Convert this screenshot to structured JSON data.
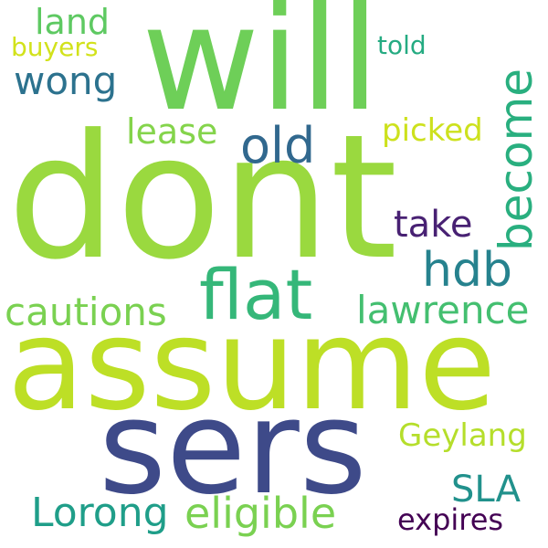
{
  "words": [
    {
      "key": "will",
      "text": "will",
      "color": "#6ecf58"
    },
    {
      "key": "dont",
      "text": "dont",
      "color": "#9ad93f"
    },
    {
      "key": "assume",
      "text": "assume",
      "color": "#bddf26"
    },
    {
      "key": "sers",
      "text": "sers",
      "color": "#3e4a89"
    },
    {
      "key": "flat",
      "text": "flat",
      "color": "#35b779"
    },
    {
      "key": "old",
      "text": "old",
      "color": "#31688e"
    },
    {
      "key": "hdb",
      "text": "hdb",
      "color": "#26828e"
    },
    {
      "key": "become",
      "text": "become",
      "color": "#29af7f"
    },
    {
      "key": "take",
      "text": "take",
      "color": "#482173"
    },
    {
      "key": "land",
      "text": "land",
      "color": "#5ec962"
    },
    {
      "key": "wong",
      "text": "wong",
      "color": "#2c728e"
    },
    {
      "key": "buyers",
      "text": "buyers",
      "color": "#d2e21b"
    },
    {
      "key": "told",
      "text": "told",
      "color": "#25ab82"
    },
    {
      "key": "lease",
      "text": "lease",
      "color": "#84d44b"
    },
    {
      "key": "picked",
      "text": "picked",
      "color": "#cde11d"
    },
    {
      "key": "cautions",
      "text": "cautions",
      "color": "#7ad151"
    },
    {
      "key": "lawrence",
      "text": "lawrence",
      "color": "#44bf70"
    },
    {
      "key": "Geylang",
      "text": "Geylang",
      "color": "#b5de2b"
    },
    {
      "key": "SLA",
      "text": "SLA",
      "color": "#21918c"
    },
    {
      "key": "Lorong",
      "text": "Lorong",
      "color": "#1f9e89"
    },
    {
      "key": "eligible",
      "text": "eligible",
      "color": "#7ad151"
    },
    {
      "key": "expires",
      "text": "expires",
      "color": "#440154"
    }
  ]
}
